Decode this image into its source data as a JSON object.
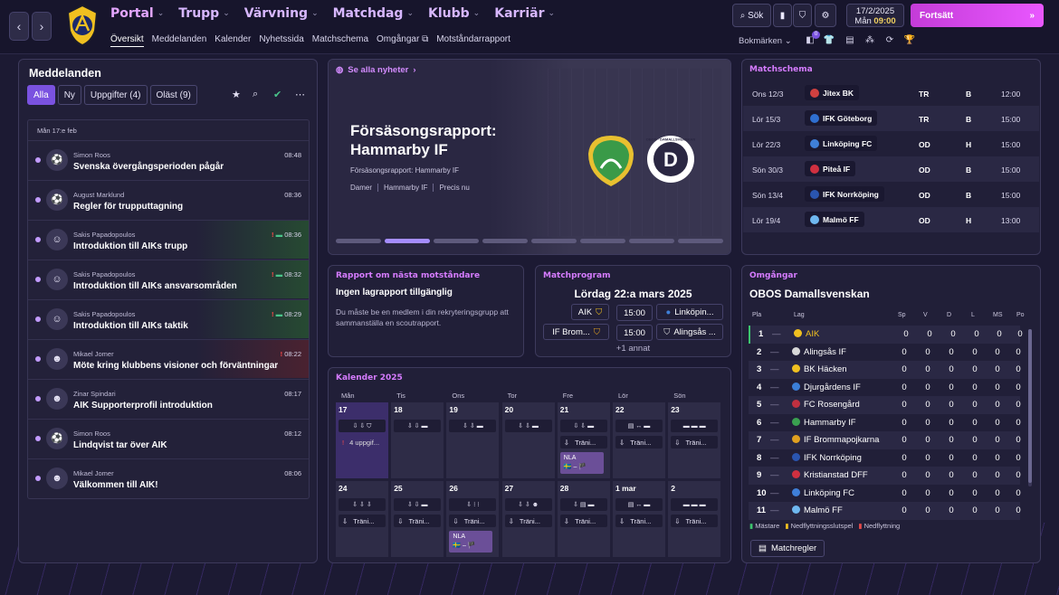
{
  "nav": {
    "back": "‹",
    "forward": "›",
    "main": [
      {
        "label": "Portal",
        "chev": "⌄"
      },
      {
        "label": "Trupp",
        "chev": "⌄"
      },
      {
        "label": "Värvning",
        "chev": "⌄"
      },
      {
        "label": "Matchdag",
        "chev": "⌄"
      },
      {
        "label": "Klubb",
        "chev": "⌄"
      },
      {
        "label": "Karriär",
        "chev": "⌄"
      }
    ],
    "sub": [
      "Översikt",
      "Meddelanden",
      "Kalender",
      "Nyhetssida",
      "Matchschema",
      "Omgångar",
      "Motståndarrapport"
    ],
    "search": "Sök",
    "date": "17/2/2025",
    "day": "Mån",
    "time": "09:00",
    "continue": "Fortsätt",
    "bookmarks": "Bokmärken",
    "bookmark_count": "0"
  },
  "messages": {
    "title": "Meddelanden",
    "filters": [
      "Alla",
      "Ny",
      "Uppgifter (4)",
      "Oläst (9)"
    ],
    "day_label": "Mån 17:e feb",
    "items": [
      {
        "sender": "Simon Roos",
        "subject": "Svenska övergångsperioden pågår",
        "time": "08:48",
        "flag": "",
        "icon": "⚽"
      },
      {
        "sender": "August Marklund",
        "subject": "Regler för trupputtagning",
        "time": "08:36",
        "flag": "",
        "icon": "⚽"
      },
      {
        "sender": "Sakis Papadopoulos",
        "subject": "Introduktion till AIKs trupp",
        "time": "08:36",
        "flag": "!",
        "icon": "☺"
      },
      {
        "sender": "Sakis Papadopoulos",
        "subject": "Introduktion till AIKs ansvarsområden",
        "time": "08:32",
        "flag": "!",
        "icon": "☺"
      },
      {
        "sender": "Sakis Papadopoulos",
        "subject": "Introduktion till AIKs taktik",
        "time": "08:29",
        "flag": "!",
        "icon": "☺"
      },
      {
        "sender": "Mikael Jomer",
        "subject": "Möte kring klubbens visioner och förväntningar",
        "time": "08:22",
        "flag": "!",
        "icon": "☻"
      },
      {
        "sender": "Zinar Spindari",
        "subject": "AIK Supporterprofil introduktion",
        "time": "08:17",
        "flag": "",
        "icon": "☻"
      },
      {
        "sender": "Simon Roos",
        "subject": "Lindqvist tar över AIK",
        "time": "08:12",
        "flag": "",
        "icon": "⚽"
      },
      {
        "sender": "Mikael Jomer",
        "subject": "Välkommen till AIK!",
        "time": "08:06",
        "flag": "",
        "icon": "☻"
      }
    ]
  },
  "news": {
    "link": "Se alla nyheter",
    "title": "Försäsongsrapport: Hammarby IF",
    "subtitle": "Försäsongsrapport: Hammarby IF",
    "tags": [
      "Damer",
      "Hammarby IF",
      "Precis nu"
    ],
    "logo2_text": "D",
    "logo2_ring": "OBOS · DAMALLSVENSKAN",
    "slides": 8,
    "active_slide": 1
  },
  "schedule": {
    "title": "Matchschema",
    "rows": [
      {
        "date": "Ons 12/3",
        "team": "Jitex BK",
        "comp": "TR",
        "venue": "B",
        "time": "12:00",
        "color": "#d04040"
      },
      {
        "date": "Lör 15/3",
        "team": "IFK Göteborg",
        "comp": "TR",
        "venue": "B",
        "time": "15:00",
        "color": "#2f6fd0"
      },
      {
        "date": "Lör 22/3",
        "team": "Linköping FC",
        "comp": "OD",
        "venue": "H",
        "time": "15:00",
        "color": "#3f7fd8"
      },
      {
        "date": "Sön 30/3",
        "team": "Piteå IF",
        "comp": "OD",
        "venue": "B",
        "time": "15:00",
        "color": "#d03040"
      },
      {
        "date": "Sön 13/4",
        "team": "IFK Norrköping",
        "comp": "OD",
        "venue": "B",
        "time": "15:00",
        "color": "#2a55b0"
      },
      {
        "date": "Lör 19/4",
        "team": "Malmö FF",
        "comp": "OD",
        "venue": "H",
        "time": "13:00",
        "color": "#6fb8f0"
      }
    ]
  },
  "report": {
    "title": "Rapport om nästa motståndare",
    "heading": "Ingen lagrapport tillgänglig",
    "body": "Du måste be en medlem i din rekryteringsgrupp att sammanställa en scoutrapport."
  },
  "program": {
    "title": "Matchprogram",
    "date": "Lördag 22:a mars 2025",
    "rows": [
      {
        "home": "AIK",
        "time": "15:00",
        "away": "Linköpin..."
      },
      {
        "home": "IF Brom...",
        "time": "15:00",
        "away": "Alingsås ..."
      }
    ],
    "more": "+1 annat"
  },
  "calendar": {
    "title": "Kalender 2025",
    "weekdays": [
      "Mån",
      "Tis",
      "Ons",
      "Tor",
      "Fre",
      "Lör",
      "Sön"
    ],
    "training": "Träni...",
    "tasks": "4 uppgif...",
    "nla": "NLA",
    "weeks": [
      [
        "17",
        "18",
        "19",
        "20",
        "21",
        "22",
        "23"
      ],
      [
        "24",
        "25",
        "26",
        "27",
        "28",
        "1 mar",
        "2"
      ]
    ]
  },
  "league": {
    "title": "Omgångar",
    "competition": "OBOS Damallsvenskan",
    "headers": [
      "Pla",
      "Lag",
      "Sp",
      "V",
      "D",
      "L",
      "MS",
      "Po"
    ],
    "rows": [
      {
        "pos": "1",
        "team": "AIK",
        "color": "#f0c020"
      },
      {
        "pos": "2",
        "team": "Alingsås IF",
        "color": "#d8d8d8"
      },
      {
        "pos": "3",
        "team": "BK Häcken",
        "color": "#f0c020"
      },
      {
        "pos": "4",
        "team": "Djurgårdens IF",
        "color": "#3b7fd8"
      },
      {
        "pos": "5",
        "team": "FC Rosengård",
        "color": "#c03040"
      },
      {
        "pos": "6",
        "team": "Hammarby IF",
        "color": "#3aa050"
      },
      {
        "pos": "7",
        "team": "IF Brommapojkarna",
        "color": "#e0a020"
      },
      {
        "pos": "8",
        "team": "IFK Norrköping",
        "color": "#2a55b0"
      },
      {
        "pos": "9",
        "team": "Kristianstad DFF",
        "color": "#d03040"
      },
      {
        "pos": "10",
        "team": "Linköping FC",
        "color": "#3f7fd8"
      },
      {
        "pos": "11",
        "team": "Malmö FF",
        "color": "#6fb8f0"
      }
    ],
    "stat": "0",
    "dash": "—",
    "legend": [
      "Mästare",
      "Nedflyttningsslutspel",
      "Nedflyttning"
    ],
    "rules_button": "Matchregler"
  }
}
